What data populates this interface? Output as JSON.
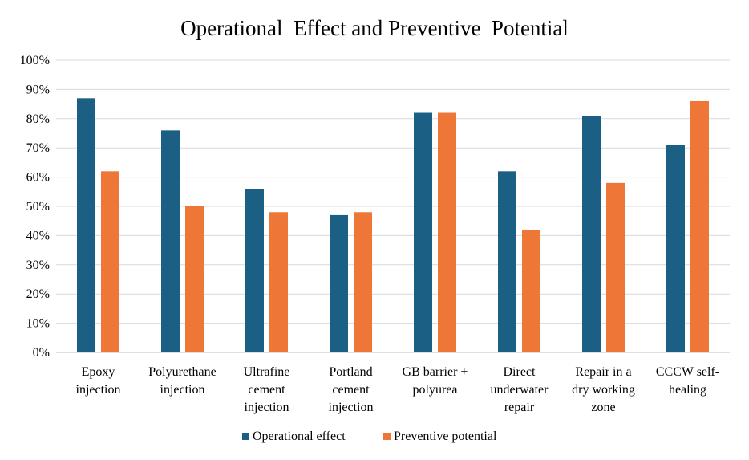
{
  "chart_data": {
    "type": "bar",
    "title": "Operational  Effect and Preventive  Potential",
    "categories": [
      [
        "Epoxy",
        "injection"
      ],
      [
        "Polyurethane",
        "injection"
      ],
      [
        "Ultrafine",
        "cement",
        "injection"
      ],
      [
        "Portland",
        "cement",
        "injection"
      ],
      [
        "GB barrier +",
        "polyurea"
      ],
      [
        "Direct",
        "underwater",
        "repair"
      ],
      [
        "Repair in a",
        "dry working",
        "zone"
      ],
      [
        "CCCW self-",
        "healing"
      ]
    ],
    "series": [
      {
        "name": "Operational effect",
        "color": "#1b5f85",
        "values": [
          87,
          76,
          56,
          47,
          82,
          62,
          81,
          71
        ]
      },
      {
        "name": "Preventive potential",
        "color": "#ee7636",
        "values": [
          62,
          50,
          48,
          48,
          82,
          42,
          58,
          86
        ]
      }
    ],
    "ylim": [
      0,
      100
    ],
    "yticks": [
      "0%",
      "10%",
      "20%",
      "30%",
      "40%",
      "50%",
      "60%",
      "70%",
      "80%",
      "90%",
      "100%"
    ],
    "grid": true,
    "legend_position": "bottom"
  }
}
